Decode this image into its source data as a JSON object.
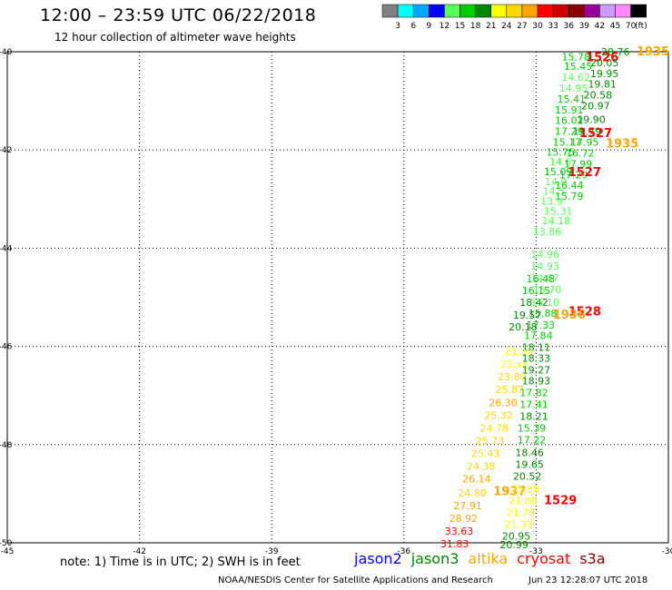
{
  "title": "12:00 – 23:59 UTC 06/22/2018",
  "subtitle": "12 hour collection of altimeter wave heights",
  "colorbar": {
    "labels": [
      "3",
      "6",
      "9",
      "12",
      "15",
      "18",
      "21",
      "24",
      "27",
      "30",
      "33",
      "36",
      "39",
      "42",
      "45",
      "70"
    ],
    "unit": "(ft)",
    "colors": [
      "#808080",
      "#00ffff",
      "#00aaff",
      "#0000ff",
      "#55ff55",
      "#00cc00",
      "#008800",
      "#ffff00",
      "#ffd700",
      "#ffa500",
      "#ff0000",
      "#cc0000",
      "#8b0000",
      "#990099",
      "#cc99ff",
      "#ff88ff",
      "#000000"
    ]
  },
  "map": {
    "lon_ticks": [
      "-45",
      "-42",
      "-39",
      "-36",
      "-33",
      "-30"
    ],
    "lat_ticks": [
      "-40",
      "-42",
      "-44",
      "-46",
      "-48",
      "-50"
    ],
    "lon_range": [
      -45,
      -30
    ],
    "lat_range": [
      -50,
      -40
    ]
  },
  "swh_labels": [
    {
      "text": "20.76",
      "lon": -31.2,
      "lat": -40.0,
      "color": "#008800"
    },
    {
      "text": "1935",
      "lon": -30.35,
      "lat": -40.0,
      "color": "#ffa500",
      "bold": true
    },
    {
      "text": "15.78",
      "lon": -32.1,
      "lat": -40.1,
      "color": "#00cc00"
    },
    {
      "text": "1526",
      "lon": -31.5,
      "lat": -40.12,
      "color": "#ff0000",
      "bold": true
    },
    {
      "text": "15.45",
      "lon": -32.05,
      "lat": -40.3,
      "color": "#00cc00"
    },
    {
      "text": "20.05",
      "lon": -31.45,
      "lat": -40.22,
      "color": "#008800"
    },
    {
      "text": "14.62",
      "lon": -32.1,
      "lat": -40.52,
      "color": "#55ff55"
    },
    {
      "text": "19.95",
      "lon": -31.45,
      "lat": -40.44,
      "color": "#008800"
    },
    {
      "text": "14.95",
      "lon": -32.15,
      "lat": -40.74,
      "color": "#55ff55"
    },
    {
      "text": "19.81",
      "lon": -31.5,
      "lat": -40.66,
      "color": "#008800"
    },
    {
      "text": "15.41",
      "lon": -32.2,
      "lat": -40.96,
      "color": "#00cc00"
    },
    {
      "text": "20.58",
      "lon": -31.6,
      "lat": -40.88,
      "color": "#008800"
    },
    {
      "text": "15.91",
      "lon": -32.25,
      "lat": -41.18,
      "color": "#00cc00"
    },
    {
      "text": "20.97",
      "lon": -31.65,
      "lat": -41.1,
      "color": "#008800"
    },
    {
      "text": "16.02",
      "lon": -32.25,
      "lat": -41.4,
      "color": "#00cc00"
    },
    {
      "text": "19.90",
      "lon": -31.75,
      "lat": -41.38,
      "color": "#008800"
    },
    {
      "text": "17.29",
      "lon": -32.25,
      "lat": -41.62,
      "color": "#00cc00"
    },
    {
      "text": "19.79",
      "lon": -31.85,
      "lat": -41.62,
      "color": "#008800"
    },
    {
      "text": "1527",
      "lon": -31.65,
      "lat": -41.66,
      "color": "#ff0000",
      "bold": true
    },
    {
      "text": "15.17",
      "lon": -32.3,
      "lat": -41.84,
      "color": "#00cc00"
    },
    {
      "text": "17.95",
      "lon": -31.9,
      "lat": -41.84,
      "color": "#00cc00"
    },
    {
      "text": "1935",
      "lon": -31.05,
      "lat": -41.88,
      "color": "#ffa500",
      "bold": true
    },
    {
      "text": "15.75",
      "lon": -32.45,
      "lat": -42.04,
      "color": "#00cc00"
    },
    {
      "text": "16.72",
      "lon": -32.0,
      "lat": -42.06,
      "color": "#00cc00"
    },
    {
      "text": "14.6",
      "lon": -32.45,
      "lat": -42.24,
      "color": "#55ff55"
    },
    {
      "text": "17.99",
      "lon": -32.05,
      "lat": -42.28,
      "color": "#00cc00"
    },
    {
      "text": "15.09",
      "lon": -32.5,
      "lat": -42.44,
      "color": "#00cc00"
    },
    {
      "text": "17.29",
      "lon": -32.15,
      "lat": -42.5,
      "color": "#00cc00"
    },
    {
      "text": "1527",
      "lon": -31.9,
      "lat": -42.46,
      "color": "#ff0000",
      "bold": true
    },
    {
      "text": "14.0",
      "lon": -32.55,
      "lat": -42.64,
      "color": "#55ff55"
    },
    {
      "text": "16.44",
      "lon": -32.25,
      "lat": -42.72,
      "color": "#00cc00"
    },
    {
      "text": "14.5",
      "lon": -32.6,
      "lat": -42.84,
      "color": "#55ff55"
    },
    {
      "text": "15.79",
      "lon": -32.25,
      "lat": -42.94,
      "color": "#00cc00"
    },
    {
      "text": "13.9",
      "lon": -32.65,
      "lat": -43.04,
      "color": "#55ff55"
    },
    {
      "text": "15.31",
      "lon": -32.5,
      "lat": -43.24,
      "color": "#55ff55"
    },
    {
      "text": "14.18",
      "lon": -32.55,
      "lat": -43.44,
      "color": "#55ff55"
    },
    {
      "text": "13.86",
      "lon": -32.75,
      "lat": -43.66,
      "color": "#55ff55"
    },
    {
      "text": "14.96",
      "lon": -32.8,
      "lat": -44.12,
      "color": "#55ff55"
    },
    {
      "text": "14.93",
      "lon": -32.8,
      "lat": -44.36,
      "color": "#55ff55"
    },
    {
      "text": "14.67",
      "lon": -32.8,
      "lat": -44.6,
      "color": "#55ff55"
    },
    {
      "text": "16.48",
      "lon": -32.9,
      "lat": -44.62,
      "color": "#00cc00"
    },
    {
      "text": "15.70",
      "lon": -32.75,
      "lat": -44.84,
      "color": "#55ff55"
    },
    {
      "text": "16.15",
      "lon": -33.0,
      "lat": -44.86,
      "color": "#00cc00"
    },
    {
      "text": "18.42",
      "lon": -33.05,
      "lat": -45.1,
      "color": "#008800"
    },
    {
      "text": "15.10",
      "lon": -32.8,
      "lat": -45.1,
      "color": "#55ff55"
    },
    {
      "text": "15.88",
      "lon": -32.85,
      "lat": -45.32,
      "color": "#00cc00"
    },
    {
      "text": "19.57",
      "lon": -33.2,
      "lat": -45.36,
      "color": "#008800"
    },
    {
      "text": "1528",
      "lon": -31.9,
      "lat": -45.3,
      "color": "#ff0000",
      "bold": true
    },
    {
      "text": "1936",
      "lon": -32.25,
      "lat": -45.36,
      "color": "#ffa500",
      "bold": true
    },
    {
      "text": "17.33",
      "lon": -32.9,
      "lat": -45.56,
      "color": "#00cc00"
    },
    {
      "text": "20.18",
      "lon": -33.3,
      "lat": -45.6,
      "color": "#008800"
    },
    {
      "text": "17.84",
      "lon": -32.95,
      "lat": -45.78,
      "color": "#00cc00"
    },
    {
      "text": "18.11",
      "lon": -33.0,
      "lat": -46.02,
      "color": "#008800"
    },
    {
      "text": "21.xx",
      "lon": -33.4,
      "lat": -46.1,
      "color": "#ffff00"
    },
    {
      "text": "18.33",
      "lon": -33.0,
      "lat": -46.24,
      "color": "#008800"
    },
    {
      "text": "22.xx",
      "lon": -33.5,
      "lat": -46.36,
      "color": "#ffff00"
    },
    {
      "text": "19.27",
      "lon": -33.0,
      "lat": -46.48,
      "color": "#008800"
    },
    {
      "text": "23.80",
      "lon": -33.55,
      "lat": -46.62,
      "color": "#ffd700"
    },
    {
      "text": "18.93",
      "lon": -33.0,
      "lat": -46.7,
      "color": "#008800"
    },
    {
      "text": "25.87",
      "lon": -33.6,
      "lat": -46.88,
      "color": "#ffd700"
    },
    {
      "text": "17.82",
      "lon": -33.05,
      "lat": -46.94,
      "color": "#00cc00"
    },
    {
      "text": "26.30",
      "lon": -33.75,
      "lat": -47.14,
      "color": "#ffa500"
    },
    {
      "text": "17.41",
      "lon": -33.05,
      "lat": -47.18,
      "color": "#00cc00"
    },
    {
      "text": "25.32",
      "lon": -33.85,
      "lat": -47.4,
      "color": "#ffd700"
    },
    {
      "text": "18.21",
      "lon": -33.05,
      "lat": -47.42,
      "color": "#008800"
    },
    {
      "text": "24.78",
      "lon": -33.95,
      "lat": -47.66,
      "color": "#ffd700"
    },
    {
      "text": "15.39",
      "lon": -33.1,
      "lat": -47.66,
      "color": "#00cc00"
    },
    {
      "text": "25.73",
      "lon": -34.05,
      "lat": -47.92,
      "color": "#ffd700"
    },
    {
      "text": "17.22",
      "lon": -33.1,
      "lat": -47.9,
      "color": "#00cc00"
    },
    {
      "text": "25.43",
      "lon": -34.15,
      "lat": -48.18,
      "color": "#ffd700"
    },
    {
      "text": "18.46",
      "lon": -33.15,
      "lat": -48.16,
      "color": "#008800"
    },
    {
      "text": "24.38",
      "lon": -34.25,
      "lat": -48.44,
      "color": "#ffd700"
    },
    {
      "text": "19.65",
      "lon": -33.15,
      "lat": -48.4,
      "color": "#008800"
    },
    {
      "text": "26.14",
      "lon": -34.35,
      "lat": -48.7,
      "color": "#ffa500"
    },
    {
      "text": "20.52",
      "lon": -33.2,
      "lat": -48.64,
      "color": "#008800"
    },
    {
      "text": "24.80",
      "lon": -34.45,
      "lat": -48.98,
      "color": "#ffd700"
    },
    {
      "text": "1937",
      "lon": -33.6,
      "lat": -48.96,
      "color": "#ffa500",
      "bold": true
    },
    {
      "text": "21.88",
      "lon": -33.25,
      "lat": -48.9,
      "color": "#ffff00"
    },
    {
      "text": "21.88",
      "lon": -33.3,
      "lat": -49.14,
      "color": "#ffff00"
    },
    {
      "text": "1529",
      "lon": -32.45,
      "lat": -49.14,
      "color": "#ff0000",
      "bold": true
    },
    {
      "text": "27.91",
      "lon": -34.55,
      "lat": -49.24,
      "color": "#ffa500"
    },
    {
      "text": "21.78",
      "lon": -33.35,
      "lat": -49.38,
      "color": "#ffff00"
    },
    {
      "text": "28.92",
      "lon": -34.65,
      "lat": -49.5,
      "color": "#ffa500"
    },
    {
      "text": "21.33",
      "lon": -33.4,
      "lat": -49.62,
      "color": "#ffff00"
    },
    {
      "text": "33.63",
      "lon": -34.75,
      "lat": -49.76,
      "color": "#ff0000"
    },
    {
      "text": "20.95",
      "lon": -33.45,
      "lat": -49.86,
      "color": "#008800"
    },
    {
      "text": "31.83",
      "lon": -34.85,
      "lat": -50.02,
      "color": "#ff0000"
    },
    {
      "text": "20.99",
      "lon": -33.5,
      "lat": -50.04,
      "color": "#008800"
    }
  ],
  "note": "note: 1) Time is in UTC; 2) SWH is in feet",
  "satellites": [
    {
      "name": "jason2",
      "color": "#0000ff"
    },
    {
      "name": "jason3",
      "color": "#008800"
    },
    {
      "name": "altika",
      "color": "#ffa500"
    },
    {
      "name": "cryosat",
      "color": "#ff0000"
    },
    {
      "name": "s3a",
      "color": "#8b0000"
    }
  ],
  "credit": "NOAA/NESDIS Center for Satellite Applications and Research",
  "timestamp": "Jun 23 12:28:07 UTC 2018"
}
